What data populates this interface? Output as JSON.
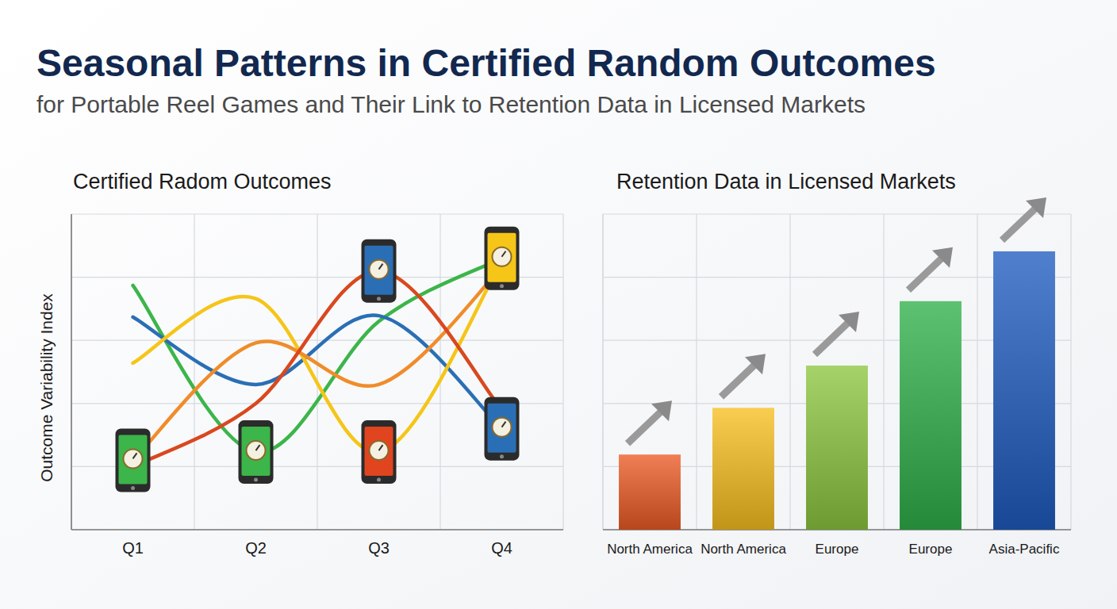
{
  "title": "Seasonal Patterns in Certified Random Outcomes",
  "subtitle": "for Portable Reel Games and Their Link to Retention Data in Licensed Markets",
  "chart_data": [
    {
      "type": "line",
      "title": "Certified Radom Outcomes",
      "y_label": "Outcome Variability Index",
      "categories": [
        "Q1",
        "Q2",
        "Q3",
        "Q4"
      ],
      "series": [
        {
          "color": "#3cb54a",
          "values": [
            3.87,
            1.23,
            3.3,
            4.3
          ]
        },
        {
          "color": "#2a6fb5",
          "values": [
            3.37,
            2.3,
            3.39,
            1.6
          ]
        },
        {
          "color": "#f5c518",
          "values": [
            2.64,
            3.66,
            1.23,
            4.25
          ]
        },
        {
          "color": "#f08c2a",
          "values": [
            1.1,
            2.96,
            2.3,
            4.15
          ]
        },
        {
          "color": "#d9481f",
          "values": [
            1.0,
            2.0,
            4.1,
            1.9
          ]
        }
      ],
      "ylim": [
        0,
        5
      ],
      "yticks": [
        0,
        1,
        2,
        3,
        4,
        5
      ],
      "grid": true,
      "tick_labels": "x"
    },
    {
      "type": "bar",
      "title": "Retention Data in Licensed Markets",
      "categories": [
        "North America",
        "North America",
        "Europe",
        "Europe",
        "Asia-Pacific"
      ],
      "values": [
        1.19,
        1.93,
        2.6,
        3.62,
        4.41
      ],
      "colors": [
        "#ec5a24",
        "#f6bf1f",
        "#8cc63f",
        "#2fb04a",
        "#1f5cbf"
      ],
      "ylim": [
        0,
        5
      ],
      "yticks": [
        0,
        1,
        2,
        3,
        4,
        5
      ],
      "grid": true,
      "tick_labels": "x"
    }
  ]
}
